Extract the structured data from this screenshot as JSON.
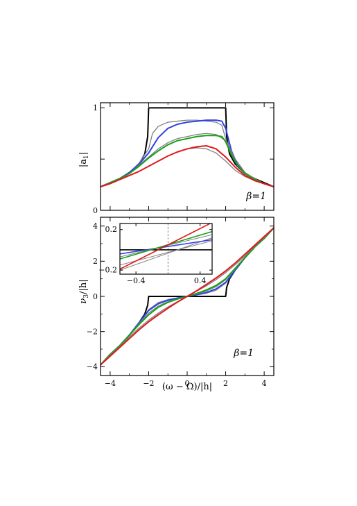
{
  "chart_data": [
    {
      "type": "line",
      "panel": "top",
      "ylabel": "|a1|",
      "ylabel_main": "|a",
      "ylabel_sub": "1",
      "ylabel_close": "|",
      "xlim": [
        -4.5,
        4.5
      ],
      "ylim": [
        0,
        1.05
      ],
      "xticks": [
        -4,
        -2,
        0,
        2,
        4
      ],
      "yticks": [
        0,
        0.5,
        1
      ],
      "ytick_labels": [
        "0",
        "",
        "1"
      ],
      "annotation": "β=1",
      "series": [
        {
          "color": "#000000",
          "x": [
            -4.5,
            -4,
            -3.5,
            -3,
            -2.5,
            -2.2,
            -2.05,
            -2,
            2,
            2.05,
            2.2,
            2.5,
            3,
            3.5,
            4,
            4.5
          ],
          "y": [
            0.23,
            0.27,
            0.31,
            0.36,
            0.45,
            0.55,
            0.72,
            1.0,
            1.0,
            0.72,
            0.55,
            0.45,
            0.36,
            0.31,
            0.27,
            0.23
          ]
        },
        {
          "color": "#808080",
          "x": [
            -4.5,
            -4,
            -3.5,
            -3,
            -2.5,
            -2,
            -1.8,
            -1.5,
            -1,
            -0.5,
            0,
            0.5,
            1,
            1.5,
            1.8,
            2,
            2.5,
            3,
            3.5,
            4,
            4.5
          ],
          "y": [
            0.23,
            0.27,
            0.31,
            0.37,
            0.46,
            0.6,
            0.75,
            0.82,
            0.86,
            0.87,
            0.88,
            0.88,
            0.87,
            0.86,
            0.83,
            0.7,
            0.47,
            0.36,
            0.3,
            0.26,
            0.23
          ]
        },
        {
          "color": "#2e42e6",
          "x": [
            -4.5,
            -4,
            -3.5,
            -3,
            -2.5,
            -2,
            -1.5,
            -1,
            -0.5,
            0,
            0.5,
            1,
            1.5,
            1.8,
            2,
            2.3,
            2.6,
            3,
            3.5,
            4,
            4.5
          ],
          "y": [
            0.23,
            0.27,
            0.31,
            0.37,
            0.45,
            0.56,
            0.71,
            0.8,
            0.84,
            0.86,
            0.87,
            0.88,
            0.88,
            0.87,
            0.8,
            0.58,
            0.45,
            0.36,
            0.3,
            0.26,
            0.23
          ]
        },
        {
          "color": "#808080",
          "x": [
            -4.5,
            -4,
            -3.5,
            -3,
            -2.5,
            -2,
            -1.5,
            -1,
            -0.5,
            0,
            0.5,
            1,
            1.5,
            2,
            2.5,
            3,
            3.5,
            4,
            4.5
          ],
          "y": [
            0.23,
            0.27,
            0.31,
            0.36,
            0.44,
            0.52,
            0.6,
            0.66,
            0.7,
            0.72,
            0.74,
            0.75,
            0.74,
            0.68,
            0.5,
            0.37,
            0.31,
            0.26,
            0.23
          ]
        },
        {
          "color": "#18a018",
          "x": [
            -4.5,
            -4,
            -3.5,
            -3,
            -2.5,
            -2,
            -1.5,
            -1,
            -0.5,
            0,
            0.5,
            1,
            1.5,
            1.8,
            2,
            2.3,
            2.6,
            3,
            3.5,
            4,
            4.5
          ],
          "y": [
            0.23,
            0.27,
            0.31,
            0.36,
            0.43,
            0.51,
            0.58,
            0.64,
            0.68,
            0.7,
            0.72,
            0.73,
            0.73,
            0.72,
            0.67,
            0.54,
            0.44,
            0.36,
            0.3,
            0.26,
            0.23
          ]
        },
        {
          "color": "#808080",
          "x": [
            -4.5,
            -4,
            -3.5,
            -3,
            -2.5,
            -2,
            -1.5,
            -1,
            -0.5,
            0,
            0.5,
            1,
            1.5,
            2,
            2.5,
            3,
            3.5,
            4,
            4.5
          ],
          "y": [
            0.23,
            0.26,
            0.3,
            0.34,
            0.38,
            0.43,
            0.48,
            0.53,
            0.57,
            0.6,
            0.61,
            0.6,
            0.56,
            0.48,
            0.39,
            0.33,
            0.29,
            0.26,
            0.23
          ]
        },
        {
          "color": "#e01818",
          "x": [
            -4.5,
            -4,
            -3.5,
            -3,
            -2.5,
            -2,
            -1.5,
            -1,
            -0.5,
            0,
            0.5,
            1,
            1.5,
            2,
            2.5,
            3,
            3.5,
            4,
            4.5
          ],
          "y": [
            0.23,
            0.26,
            0.3,
            0.34,
            0.38,
            0.43,
            0.48,
            0.53,
            0.57,
            0.6,
            0.62,
            0.63,
            0.6,
            0.52,
            0.42,
            0.34,
            0.29,
            0.26,
            0.23
          ]
        }
      ]
    },
    {
      "type": "line",
      "panel": "bottom",
      "ylabel": "ν3/|h|",
      "ylabel_main": "ν",
      "ylabel_sub": "3",
      "ylabel_rest": "/|h|",
      "xlabel": "(ω − Ω)/|h|",
      "xlim": [
        -4.5,
        4.5
      ],
      "ylim": [
        -4.5,
        4.5
      ],
      "xticks": [
        -4,
        -2,
        0,
        2,
        4
      ],
      "xtick_labels": [
        "−4",
        "−2",
        "0",
        "2",
        "4"
      ],
      "yticks": [
        -4,
        -2,
        0,
        2,
        4
      ],
      "ytick_labels": [
        "−4",
        "−2",
        "0",
        "2",
        "4"
      ],
      "annotation": "β=1",
      "series": [
        {
          "color": "#000000",
          "x": [
            -4.5,
            -4,
            -3.5,
            -3,
            -2.5,
            -2.2,
            -2.05,
            -2,
            2,
            2.05,
            2.2,
            2.5,
            3,
            3.5,
            4,
            4.5
          ],
          "y": [
            -3.9,
            -3.3,
            -2.8,
            -2.2,
            -1.5,
            -1.0,
            -0.5,
            0,
            0,
            0.5,
            1.0,
            1.5,
            2.2,
            2.8,
            3.3,
            3.9
          ]
        },
        {
          "color": "#808080",
          "x": [
            -4.5,
            -4,
            -3.5,
            -3,
            -2.5,
            -2,
            -1.5,
            -1,
            -0.5,
            0,
            0.5,
            1,
            1.5,
            2,
            2.5,
            3,
            3.5,
            4,
            4.5
          ],
          "y": [
            -3.9,
            -3.3,
            -2.8,
            -2.2,
            -1.5,
            -0.75,
            -0.35,
            -0.18,
            -0.08,
            0.0,
            0.08,
            0.18,
            0.35,
            0.75,
            1.5,
            2.2,
            2.8,
            3.3,
            3.9
          ]
        },
        {
          "color": "#2e42e6",
          "x": [
            -4.5,
            -4,
            -3.5,
            -3,
            -2.5,
            -2,
            -1.5,
            -1,
            -0.5,
            0,
            0.5,
            1,
            1.5,
            2,
            2.5,
            3,
            3.5,
            4,
            4.5
          ],
          "y": [
            -3.9,
            -3.3,
            -2.8,
            -2.2,
            -1.5,
            -0.8,
            -0.42,
            -0.22,
            -0.1,
            0.0,
            0.1,
            0.22,
            0.42,
            0.8,
            1.5,
            2.2,
            2.8,
            3.3,
            3.9
          ]
        },
        {
          "color": "#808080",
          "x": [
            -4.5,
            -4,
            -3.5,
            -3,
            -2.5,
            -2,
            -1.5,
            -1,
            -0.5,
            0,
            0.5,
            1,
            1.5,
            2,
            2.5,
            3,
            3.5,
            4,
            4.5
          ],
          "y": [
            -3.9,
            -3.3,
            -2.8,
            -2.2,
            -1.55,
            -0.95,
            -0.55,
            -0.3,
            -0.14,
            0.0,
            0.14,
            0.3,
            0.55,
            0.95,
            1.55,
            2.2,
            2.8,
            3.3,
            3.9
          ]
        },
        {
          "color": "#18a018",
          "x": [
            -4.5,
            -4,
            -3.5,
            -3,
            -2.5,
            -2,
            -1.5,
            -1,
            -0.5,
            0,
            0.5,
            1,
            1.5,
            2,
            2.5,
            3,
            3.5,
            4,
            4.5
          ],
          "y": [
            -3.9,
            -3.3,
            -2.8,
            -2.2,
            -1.6,
            -1.05,
            -0.62,
            -0.34,
            -0.15,
            0.0,
            0.17,
            0.37,
            0.62,
            1.0,
            1.6,
            2.2,
            2.8,
            3.3,
            3.9
          ]
        },
        {
          "color": "#808080",
          "x": [
            -4.5,
            -4,
            -3.5,
            -3,
            -2.5,
            -2,
            -1.5,
            -1,
            -0.5,
            0,
            0.5,
            1,
            1.5,
            2,
            2.5,
            3,
            3.5,
            4,
            4.5
          ],
          "y": [
            -3.9,
            -3.35,
            -2.85,
            -2.3,
            -1.8,
            -1.35,
            -0.95,
            -0.6,
            -0.3,
            0.0,
            0.3,
            0.6,
            0.95,
            1.35,
            1.8,
            2.3,
            2.85,
            3.35,
            3.9
          ]
        },
        {
          "color": "#e01818",
          "x": [
            -4.5,
            -4,
            -3.5,
            -3,
            -2.5,
            -2,
            -1.5,
            -1,
            -0.5,
            0,
            0.5,
            1,
            1.5,
            2,
            2.5,
            3,
            3.5,
            4,
            4.5
          ],
          "y": [
            -3.9,
            -3.4,
            -2.9,
            -2.4,
            -1.9,
            -1.45,
            -1.05,
            -0.68,
            -0.32,
            0.0,
            0.32,
            0.68,
            1.05,
            1.45,
            1.9,
            2.4,
            2.9,
            3.4,
            3.9
          ]
        }
      ]
    },
    {
      "type": "line",
      "panel": "inset",
      "xlim": [
        -0.6,
        0.55
      ],
      "ylim": [
        -0.24,
        0.26
      ],
      "xticks": [
        -0.4,
        0.4
      ],
      "xtick_labels": [
        "−0.4",
        "0.4"
      ],
      "yticks": [
        -0.2,
        0.2
      ],
      "ytick_labels": [
        "−0.2",
        "0.2"
      ],
      "vline_x": 0,
      "series": [
        {
          "color": "#000000",
          "x": [
            -0.6,
            0.55
          ],
          "y": [
            0,
            0
          ]
        },
        {
          "color": "#808080",
          "x": [
            -0.6,
            0.55
          ],
          "y": [
            -0.15,
            0.09
          ]
        },
        {
          "color": "#808080",
          "x": [
            -0.6,
            0.55
          ],
          "y": [
            -0.2,
            0.12
          ]
        },
        {
          "color": "#2e42e6",
          "x": [
            -0.6,
            0.55
          ],
          "y": [
            -0.04,
            0.1
          ]
        },
        {
          "color": "#808080",
          "x": [
            -0.6,
            0.55
          ],
          "y": [
            -0.07,
            0.15
          ]
        },
        {
          "color": "#18a018",
          "x": [
            -0.6,
            0.55
          ],
          "y": [
            -0.09,
            0.18
          ]
        },
        {
          "color": "#e01818",
          "x": [
            -0.6,
            0.55
          ],
          "y": [
            -0.19,
            0.27
          ]
        }
      ]
    }
  ]
}
